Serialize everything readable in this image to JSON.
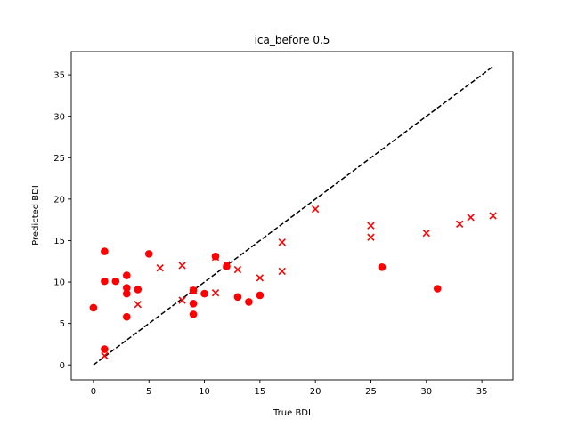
{
  "chart_data": {
    "type": "scatter",
    "title": "ica_before 0.5",
    "xlabel": "True BDI",
    "ylabel": "Predicted BDI",
    "xlim": [
      -2,
      37.8
    ],
    "ylim": [
      -1.8,
      37.8
    ],
    "xticks": [
      0,
      5,
      10,
      15,
      20,
      25,
      30,
      35
    ],
    "yticks": [
      0,
      5,
      10,
      15,
      20,
      25,
      30,
      35
    ],
    "grid": false,
    "colors": {
      "points": "#ff0000",
      "reference": "#000000",
      "axes": "#000000"
    },
    "reference_line": {
      "style": "dashed",
      "x": [
        0,
        36
      ],
      "y": [
        0,
        36
      ]
    },
    "series": [
      {
        "marker": "circle",
        "points": [
          [
            0,
            6.9
          ],
          [
            1,
            13.7
          ],
          [
            1,
            10.1
          ],
          [
            1,
            1.9
          ],
          [
            2,
            10.1
          ],
          [
            3,
            10.8
          ],
          [
            3,
            9.3
          ],
          [
            3,
            8.6
          ],
          [
            3,
            5.8
          ],
          [
            4,
            9.1
          ],
          [
            5,
            13.4
          ],
          [
            9,
            9.0
          ],
          [
            9,
            7.4
          ],
          [
            9,
            6.1
          ],
          [
            10,
            8.6
          ],
          [
            11,
            13.1
          ],
          [
            12,
            11.9
          ],
          [
            13,
            8.2
          ],
          [
            14,
            7.6
          ],
          [
            15,
            8.4
          ],
          [
            26,
            11.8
          ],
          [
            31,
            9.2
          ]
        ]
      },
      {
        "marker": "x",
        "points": [
          [
            1,
            1.1
          ],
          [
            4,
            7.3
          ],
          [
            6,
            11.7
          ],
          [
            8,
            12.0
          ],
          [
            8,
            7.8
          ],
          [
            9,
            9.0
          ],
          [
            11,
            8.7
          ],
          [
            11,
            13.0
          ],
          [
            12,
            12.1
          ],
          [
            13,
            11.5
          ],
          [
            15,
            10.5
          ],
          [
            17,
            14.8
          ],
          [
            17,
            11.3
          ],
          [
            20,
            18.8
          ],
          [
            25,
            16.8
          ],
          [
            25,
            15.4
          ],
          [
            30,
            15.9
          ],
          [
            33,
            17.0
          ],
          [
            34,
            17.8
          ],
          [
            36,
            18.0
          ]
        ]
      }
    ]
  }
}
